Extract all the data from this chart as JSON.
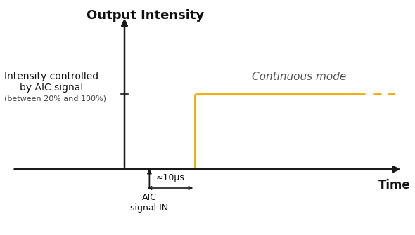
{
  "bg_color": "#ffffff",
  "axis_color": "#1a1a1a",
  "line_color": "#F5A800",
  "line_width": 2.0,
  "title": "Output Intensity",
  "title_fontsize": 13,
  "title_fontweight": "bold",
  "xlabel": "Time",
  "xlabel_fontsize": 12,
  "xlabel_fontweight": "bold",
  "intensity_label_line1": "Intensity controlled",
  "intensity_label_line2": "by AIC signal",
  "intensity_label_line3": "(between 20% and 100%)",
  "continuous_mode_label": "Continuous mode",
  "aic_label": "AIC\nsignal IN",
  "duration_label": "≈10μs",
  "annotation_fontsize": 9,
  "small_fontsize": 8,
  "continuous_fontsize": 11
}
